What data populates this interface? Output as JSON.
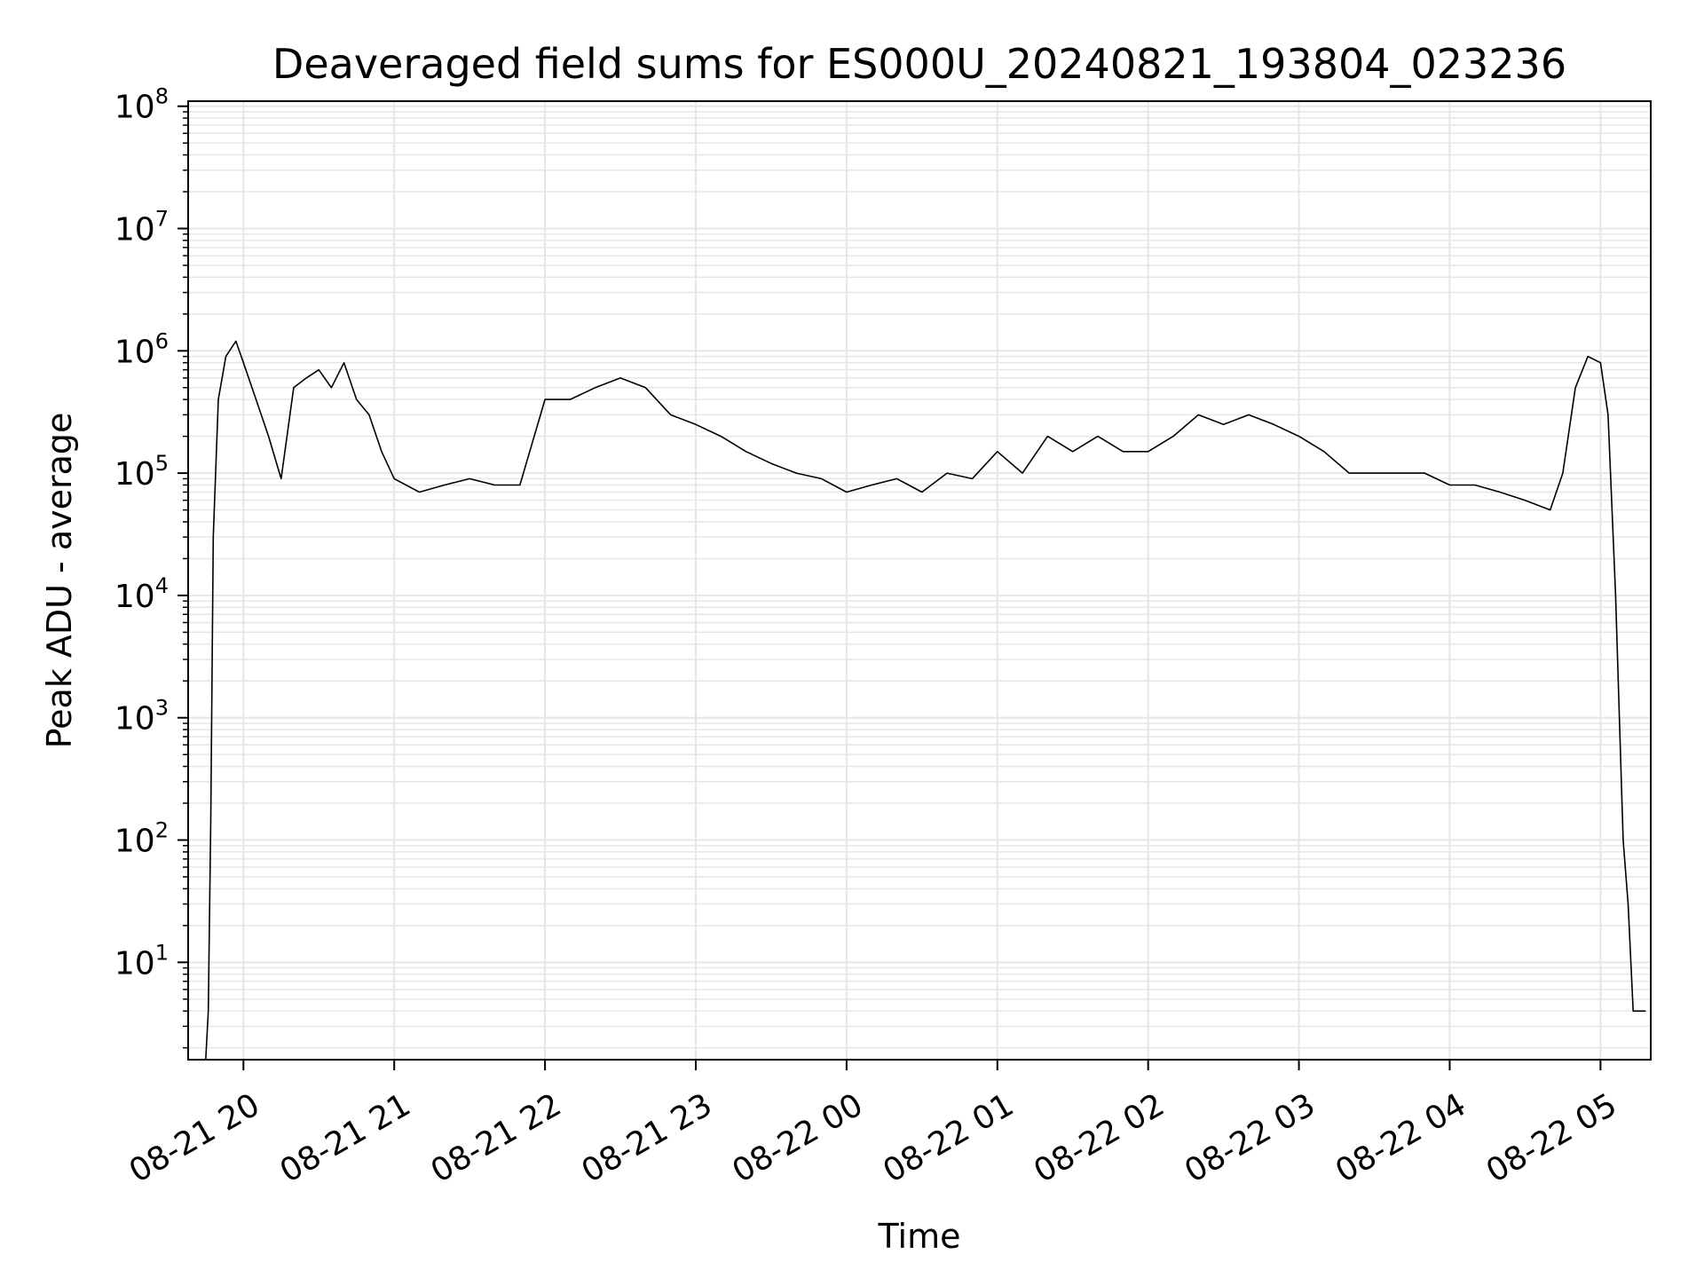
{
  "chart_data": {
    "type": "line",
    "title": "Deaveraged field sums for ES000U_20240821_193804_023236",
    "xlabel": "Time",
    "ylabel": "Peak ADU - average",
    "y_scale": "log",
    "ylim": [
      1.6,
      110000000
    ],
    "xlim": [
      "2024-08-21 19:38",
      "2024-08-22 05:20"
    ],
    "grid": true,
    "line_color": "#000000",
    "grid_color": "#e6e6e6",
    "x_ticks": [
      {
        "t": "2024-08-21 20:00",
        "label": "08-21 20"
      },
      {
        "t": "2024-08-21 21:00",
        "label": "08-21 21"
      },
      {
        "t": "2024-08-21 22:00",
        "label": "08-21 22"
      },
      {
        "t": "2024-08-21 23:00",
        "label": "08-21 23"
      },
      {
        "t": "2024-08-22 00:00",
        "label": "08-22 00"
      },
      {
        "t": "2024-08-22 01:00",
        "label": "08-22 01"
      },
      {
        "t": "2024-08-22 02:00",
        "label": "08-22 02"
      },
      {
        "t": "2024-08-22 03:00",
        "label": "08-22 03"
      },
      {
        "t": "2024-08-22 04:00",
        "label": "08-22 04"
      },
      {
        "t": "2024-08-22 05:00",
        "label": "08-22 05"
      }
    ],
    "y_ticks": [
      {
        "value": 10,
        "base": "10",
        "exp": "1"
      },
      {
        "value": 100,
        "base": "10",
        "exp": "2"
      },
      {
        "value": 1000,
        "base": "10",
        "exp": "3"
      },
      {
        "value": 10000,
        "base": "10",
        "exp": "4"
      },
      {
        "value": 100000,
        "base": "10",
        "exp": "5"
      },
      {
        "value": 1000000,
        "base": "10",
        "exp": "6"
      },
      {
        "value": 10000000,
        "base": "10",
        "exp": "7"
      },
      {
        "value": 100000000,
        "base": "10",
        "exp": "8"
      }
    ],
    "series": [
      {
        "x": [
          "2024-08-21 19:45",
          "2024-08-21 19:46",
          "2024-08-21 19:47",
          "2024-08-21 19:48",
          "2024-08-21 19:50",
          "2024-08-21 19:53",
          "2024-08-21 19:57",
          "2024-08-21 20:00",
          "2024-08-21 20:05",
          "2024-08-21 20:10",
          "2024-08-21 20:15",
          "2024-08-21 20:20",
          "2024-08-21 20:25",
          "2024-08-21 20:30",
          "2024-08-21 20:35",
          "2024-08-21 20:40",
          "2024-08-21 20:45",
          "2024-08-21 20:50",
          "2024-08-21 20:55",
          "2024-08-21 21:00",
          "2024-08-21 21:10",
          "2024-08-21 21:20",
          "2024-08-21 21:30",
          "2024-08-21 21:40",
          "2024-08-21 21:50",
          "2024-08-21 22:00",
          "2024-08-21 22:10",
          "2024-08-21 22:20",
          "2024-08-21 22:30",
          "2024-08-21 22:40",
          "2024-08-21 22:50",
          "2024-08-21 23:00",
          "2024-08-21 23:10",
          "2024-08-21 23:20",
          "2024-08-21 23:30",
          "2024-08-21 23:40",
          "2024-08-21 23:50",
          "2024-08-22 00:00",
          "2024-08-22 00:10",
          "2024-08-22 00:20",
          "2024-08-22 00:30",
          "2024-08-22 00:40",
          "2024-08-22 00:50",
          "2024-08-22 01:00",
          "2024-08-22 01:10",
          "2024-08-22 01:20",
          "2024-08-22 01:30",
          "2024-08-22 01:40",
          "2024-08-22 01:50",
          "2024-08-22 02:00",
          "2024-08-22 02:10",
          "2024-08-22 02:20",
          "2024-08-22 02:30",
          "2024-08-22 02:40",
          "2024-08-22 02:50",
          "2024-08-22 03:00",
          "2024-08-22 03:10",
          "2024-08-22 03:20",
          "2024-08-22 03:30",
          "2024-08-22 03:40",
          "2024-08-22 03:50",
          "2024-08-22 04:00",
          "2024-08-22 04:10",
          "2024-08-22 04:20",
          "2024-08-22 04:30",
          "2024-08-22 04:40",
          "2024-08-22 04:45",
          "2024-08-22 04:50",
          "2024-08-22 04:55",
          "2024-08-22 05:00",
          "2024-08-22 05:03",
          "2024-08-22 05:06",
          "2024-08-22 05:09",
          "2024-08-22 05:11",
          "2024-08-22 05:13",
          "2024-08-22 05:15",
          "2024-08-22 05:18"
        ],
        "y": [
          1.6,
          4,
          150,
          30000,
          400000,
          900000,
          1200000,
          800000,
          400000,
          200000,
          90000,
          500000,
          600000,
          700000,
          500000,
          800000,
          400000,
          300000,
          150000,
          90000,
          70000,
          80000,
          90000,
          80000,
          80000,
          400000,
          400000,
          500000,
          600000,
          500000,
          300000,
          250000,
          200000,
          150000,
          120000,
          100000,
          90000,
          70000,
          80000,
          90000,
          70000,
          100000,
          90000,
          150000,
          100000,
          200000,
          150000,
          200000,
          150000,
          150000,
          200000,
          300000,
          250000,
          300000,
          250000,
          200000,
          150000,
          100000,
          100000,
          100000,
          100000,
          80000,
          80000,
          70000,
          60000,
          50000,
          100000,
          500000,
          900000,
          800000,
          300000,
          10000,
          100,
          30,
          4,
          4,
          4
        ]
      }
    ]
  }
}
